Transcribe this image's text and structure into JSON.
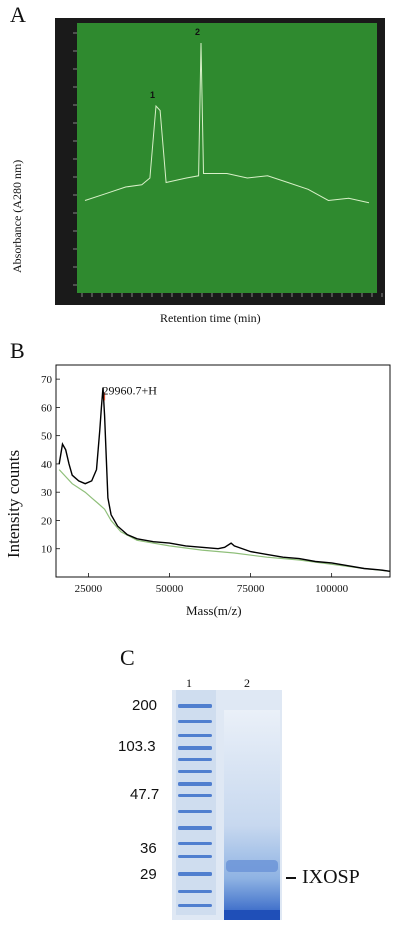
{
  "panels": {
    "a": {
      "label": "A",
      "ylabel": "Absorbance (A280 nm)",
      "xlabel": "Retention time (min)",
      "peaks": [
        {
          "label": "1"
        },
        {
          "label": "2"
        }
      ],
      "colors": {
        "background": "#2f8a2f",
        "trace": "#d8f0c8",
        "frame": "#1a1a1a"
      }
    },
    "b": {
      "label": "B",
      "ylabel": "Intensity counts",
      "xlabel": "Mass(m/z)",
      "annotation": "29960.7+H"
    },
    "c": {
      "label": "C",
      "lanes": [
        "1",
        "2"
      ],
      "markers": [
        "200",
        "103.3",
        "47.7",
        "36",
        "29"
      ],
      "band_label": "IXOSP",
      "colors": {
        "gel": "#dfe8f4",
        "stain": "#3a6fc9"
      }
    }
  },
  "chart_data": [
    {
      "type": "line",
      "title": "",
      "xlabel": "Retention time (min)",
      "ylabel": "Absorbance (A280 nm)",
      "x_unit": "min",
      "series": [
        {
          "points": [
            [
              0,
              0.3
            ],
            [
              5,
              0.33
            ],
            [
              10,
              0.36
            ],
            [
              14,
              0.37
            ],
            [
              16,
              0.4
            ],
            [
              17.5,
              0.72
            ],
            [
              18.5,
              0.7
            ],
            [
              20,
              0.38
            ],
            [
              25,
              0.4
            ],
            [
              28,
              0.41
            ],
            [
              28.6,
              1.0
            ],
            [
              29.2,
              0.42
            ],
            [
              35,
              0.42
            ],
            [
              40,
              0.4
            ],
            [
              45,
              0.41
            ],
            [
              50,
              0.38
            ],
            [
              55,
              0.35
            ],
            [
              60,
              0.3
            ],
            [
              65,
              0.31
            ],
            [
              70,
              0.29
            ]
          ]
        }
      ],
      "peaks": [
        {
          "label": "1",
          "x": 17.5
        },
        {
          "label": "2",
          "x": 28.6
        }
      ],
      "grid": false
    },
    {
      "type": "line",
      "title": "",
      "xlabel": "Mass(m/z)",
      "ylabel": "Intensity counts",
      "xlim": [
        15000,
        118000
      ],
      "ylim": [
        0,
        75
      ],
      "x_ticks": [
        25000,
        50000,
        75000,
        100000
      ],
      "y_ticks": [
        10,
        20,
        30,
        40,
        50,
        60,
        70
      ],
      "annotations": [
        {
          "text": "29960.7+H",
          "x": 29960.7,
          "y": 66
        }
      ],
      "series": [
        {
          "color": "#000000",
          "points": [
            [
              16000,
              40
            ],
            [
              17000,
              47
            ],
            [
              18000,
              45
            ],
            [
              19000,
              40
            ],
            [
              20000,
              36
            ],
            [
              22000,
              34
            ],
            [
              24000,
              33
            ],
            [
              26000,
              34
            ],
            [
              27500,
              38
            ],
            [
              28500,
              52
            ],
            [
              29000,
              60
            ],
            [
              29500,
              67
            ],
            [
              30000,
              57
            ],
            [
              30500,
              42
            ],
            [
              31000,
              28
            ],
            [
              32000,
              22
            ],
            [
              34000,
              18
            ],
            [
              37000,
              15
            ],
            [
              40000,
              13.5
            ],
            [
              45000,
              12.5
            ],
            [
              50000,
              12
            ],
            [
              55000,
              11
            ],
            [
              60000,
              10.5
            ],
            [
              65000,
              10
            ],
            [
              67000,
              10.5
            ],
            [
              69000,
              12
            ],
            [
              70000,
              11
            ],
            [
              75000,
              9
            ],
            [
              80000,
              8
            ],
            [
              85000,
              7
            ],
            [
              90000,
              6.5
            ],
            [
              95000,
              5.5
            ],
            [
              100000,
              5
            ],
            [
              105000,
              4
            ],
            [
              110000,
              3
            ],
            [
              115000,
              2.5
            ],
            [
              118000,
              2
            ]
          ]
        },
        {
          "color": "#8fbf7a",
          "points": [
            [
              16000,
              38
            ],
            [
              20000,
              33
            ],
            [
              24000,
              30
            ],
            [
              26000,
              28
            ],
            [
              28000,
              26
            ],
            [
              30000,
              24
            ],
            [
              32000,
              20
            ],
            [
              35000,
              16
            ],
            [
              40000,
              13
            ],
            [
              50000,
              11
            ],
            [
              60000,
              9.5
            ],
            [
              70000,
              8.5
            ],
            [
              80000,
              7
            ],
            [
              90000,
              6
            ],
            [
              100000,
              4.5
            ],
            [
              110000,
              3
            ],
            [
              118000,
              2
            ]
          ]
        }
      ]
    },
    {
      "type": "table",
      "title": "",
      "lanes": [
        "1",
        "2"
      ],
      "marker_kda": [
        200,
        103.3,
        47.7,
        36,
        29
      ],
      "band": {
        "label": "IXOSP",
        "lane": "2",
        "kda_near": 29
      }
    }
  ]
}
